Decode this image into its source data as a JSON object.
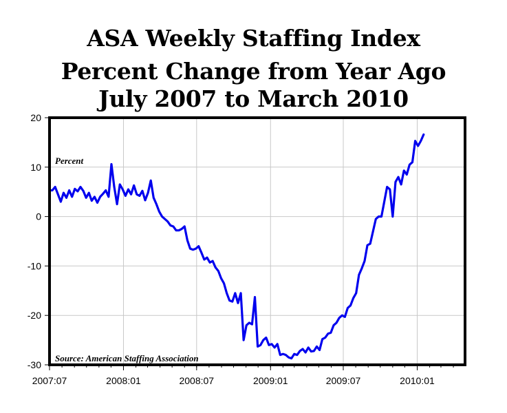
{
  "chart_data": {
    "type": "line",
    "title": [
      "ASA Weekly Staffing Index",
      "Percent Change from Year Ago",
      "July 2007 to March 2010"
    ],
    "ylabel": "Percent",
    "xlabel": "",
    "source": "Source: American Staffing Association",
    "ylim": [
      -30,
      20
    ],
    "yticks": [
      20,
      10,
      0,
      -10,
      -20,
      -30
    ],
    "xlim": [
      "2007-07-01",
      "2010-04-30"
    ],
    "xticks": [
      {
        "label": "2007:07",
        "date": "2007-07-01"
      },
      {
        "label": "2008:01",
        "date": "2008-01-01"
      },
      {
        "label": "2008:07",
        "date": "2008-07-01"
      },
      {
        "label": "2009:01",
        "date": "2009-01-01"
      },
      {
        "label": "2009:07",
        "date": "2009-07-01"
      },
      {
        "label": "2010:01",
        "date": "2010-01-01"
      }
    ],
    "grid": true,
    "line_color": "#0000ee",
    "series": [
      {
        "name": "",
        "points": [
          [
            "2007-07-01",
            5.3
          ],
          [
            "2007-07-08",
            5.3
          ],
          [
            "2007-07-15",
            6.0
          ],
          [
            "2007-07-22",
            4.5
          ],
          [
            "2007-07-29",
            3.0
          ],
          [
            "2007-08-05",
            4.8
          ],
          [
            "2007-08-12",
            3.8
          ],
          [
            "2007-08-19",
            5.3
          ],
          [
            "2007-08-26",
            4.0
          ],
          [
            "2007-09-02",
            5.6
          ],
          [
            "2007-09-09",
            5.1
          ],
          [
            "2007-09-16",
            6.0
          ],
          [
            "2007-09-23",
            5.2
          ],
          [
            "2007-09-30",
            3.8
          ],
          [
            "2007-10-07",
            4.8
          ],
          [
            "2007-10-14",
            3.2
          ],
          [
            "2007-10-21",
            4.0
          ],
          [
            "2007-10-28",
            2.8
          ],
          [
            "2007-11-04",
            4.0
          ],
          [
            "2007-11-11",
            4.6
          ],
          [
            "2007-11-18",
            5.3
          ],
          [
            "2007-11-25",
            4.0
          ],
          [
            "2007-12-02",
            10.6
          ],
          [
            "2007-12-09",
            6.0
          ],
          [
            "2007-12-16",
            2.5
          ],
          [
            "2007-12-23",
            6.5
          ],
          [
            "2007-12-30",
            5.5
          ],
          [
            "2008-01-06",
            4.2
          ],
          [
            "2008-01-13",
            5.5
          ],
          [
            "2008-01-20",
            4.5
          ],
          [
            "2008-01-27",
            6.3
          ],
          [
            "2008-02-03",
            4.5
          ],
          [
            "2008-02-10",
            4.2
          ],
          [
            "2008-02-17",
            5.2
          ],
          [
            "2008-02-24",
            3.3
          ],
          [
            "2008-03-02",
            4.8
          ],
          [
            "2008-03-09",
            7.3
          ],
          [
            "2008-03-16",
            3.8
          ],
          [
            "2008-03-23",
            2.5
          ],
          [
            "2008-03-30",
            1.0
          ],
          [
            "2008-04-06",
            0.0
          ],
          [
            "2008-04-13",
            -0.5
          ],
          [
            "2008-04-20",
            -1.0
          ],
          [
            "2008-04-27",
            -1.8
          ],
          [
            "2008-05-04",
            -2.0
          ],
          [
            "2008-05-11",
            -2.8
          ],
          [
            "2008-05-18",
            -2.8
          ],
          [
            "2008-05-25",
            -2.5
          ],
          [
            "2008-06-01",
            -2.0
          ],
          [
            "2008-06-08",
            -4.8
          ],
          [
            "2008-06-15",
            -6.5
          ],
          [
            "2008-06-22",
            -6.7
          ],
          [
            "2008-06-29",
            -6.5
          ],
          [
            "2008-07-06",
            -6.0
          ],
          [
            "2008-07-13",
            -7.3
          ],
          [
            "2008-07-20",
            -8.7
          ],
          [
            "2008-07-27",
            -8.3
          ],
          [
            "2008-08-03",
            -9.3
          ],
          [
            "2008-08-10",
            -9.0
          ],
          [
            "2008-08-17",
            -10.3
          ],
          [
            "2008-08-24",
            -11.0
          ],
          [
            "2008-08-31",
            -12.5
          ],
          [
            "2008-09-07",
            -13.5
          ],
          [
            "2008-09-14",
            -15.5
          ],
          [
            "2008-09-21",
            -17.0
          ],
          [
            "2008-09-28",
            -17.2
          ],
          [
            "2008-10-05",
            -15.5
          ],
          [
            "2008-10-12",
            -17.5
          ],
          [
            "2008-10-19",
            -15.5
          ],
          [
            "2008-10-26",
            -25.0
          ],
          [
            "2008-11-02",
            -22.0
          ],
          [
            "2008-11-09",
            -21.5
          ],
          [
            "2008-11-16",
            -21.8
          ],
          [
            "2008-11-23",
            -16.3
          ],
          [
            "2008-11-30",
            -26.3
          ],
          [
            "2008-12-07",
            -26.0
          ],
          [
            "2008-12-14",
            -25.0
          ],
          [
            "2008-12-21",
            -24.5
          ],
          [
            "2008-12-28",
            -26.0
          ],
          [
            "2009-01-04",
            -25.8
          ],
          [
            "2009-01-11",
            -26.5
          ],
          [
            "2009-01-18",
            -25.8
          ],
          [
            "2009-01-25",
            -28.0
          ],
          [
            "2009-02-01",
            -27.8
          ],
          [
            "2009-02-08",
            -28.0
          ],
          [
            "2009-02-15",
            -28.5
          ],
          [
            "2009-02-22",
            -28.7
          ],
          [
            "2009-03-01",
            -27.8
          ],
          [
            "2009-03-08",
            -28.0
          ],
          [
            "2009-03-15",
            -27.2
          ],
          [
            "2009-03-22",
            -26.8
          ],
          [
            "2009-03-29",
            -27.5
          ],
          [
            "2009-04-05",
            -26.5
          ],
          [
            "2009-04-12",
            -27.3
          ],
          [
            "2009-04-19",
            -27.2
          ],
          [
            "2009-04-26",
            -26.3
          ],
          [
            "2009-05-03",
            -27.0
          ],
          [
            "2009-05-10",
            -24.8
          ],
          [
            "2009-05-17",
            -24.5
          ],
          [
            "2009-05-24",
            -23.7
          ],
          [
            "2009-05-31",
            -23.5
          ],
          [
            "2009-06-07",
            -22.0
          ],
          [
            "2009-06-14",
            -21.5
          ],
          [
            "2009-06-21",
            -20.5
          ],
          [
            "2009-06-28",
            -20.0
          ],
          [
            "2009-07-05",
            -20.3
          ],
          [
            "2009-07-12",
            -18.5
          ],
          [
            "2009-07-19",
            -18.0
          ],
          [
            "2009-07-26",
            -16.5
          ],
          [
            "2009-08-02",
            -15.5
          ],
          [
            "2009-08-09",
            -11.8
          ],
          [
            "2009-08-16",
            -10.5
          ],
          [
            "2009-08-23",
            -9.0
          ],
          [
            "2009-08-30",
            -5.8
          ],
          [
            "2009-09-06",
            -5.5
          ],
          [
            "2009-09-13",
            -3.0
          ],
          [
            "2009-09-20",
            -0.5
          ],
          [
            "2009-09-27",
            0.0
          ],
          [
            "2009-10-04",
            0.0
          ],
          [
            "2009-10-11",
            3.0
          ],
          [
            "2009-10-18",
            6.0
          ],
          [
            "2009-10-25",
            5.5
          ],
          [
            "2009-11-01",
            0.0
          ],
          [
            "2009-11-08",
            7.0
          ],
          [
            "2009-11-15",
            8.0
          ],
          [
            "2009-11-22",
            6.5
          ],
          [
            "2009-11-29",
            9.3
          ],
          [
            "2009-12-06",
            8.5
          ],
          [
            "2009-12-13",
            10.5
          ],
          [
            "2009-12-20",
            11.0
          ],
          [
            "2009-12-27",
            15.3
          ],
          [
            "2010-01-03",
            14.3
          ],
          [
            "2010-01-10",
            15.3
          ],
          [
            "2010-01-17",
            16.6
          ]
        ]
      }
    ]
  }
}
